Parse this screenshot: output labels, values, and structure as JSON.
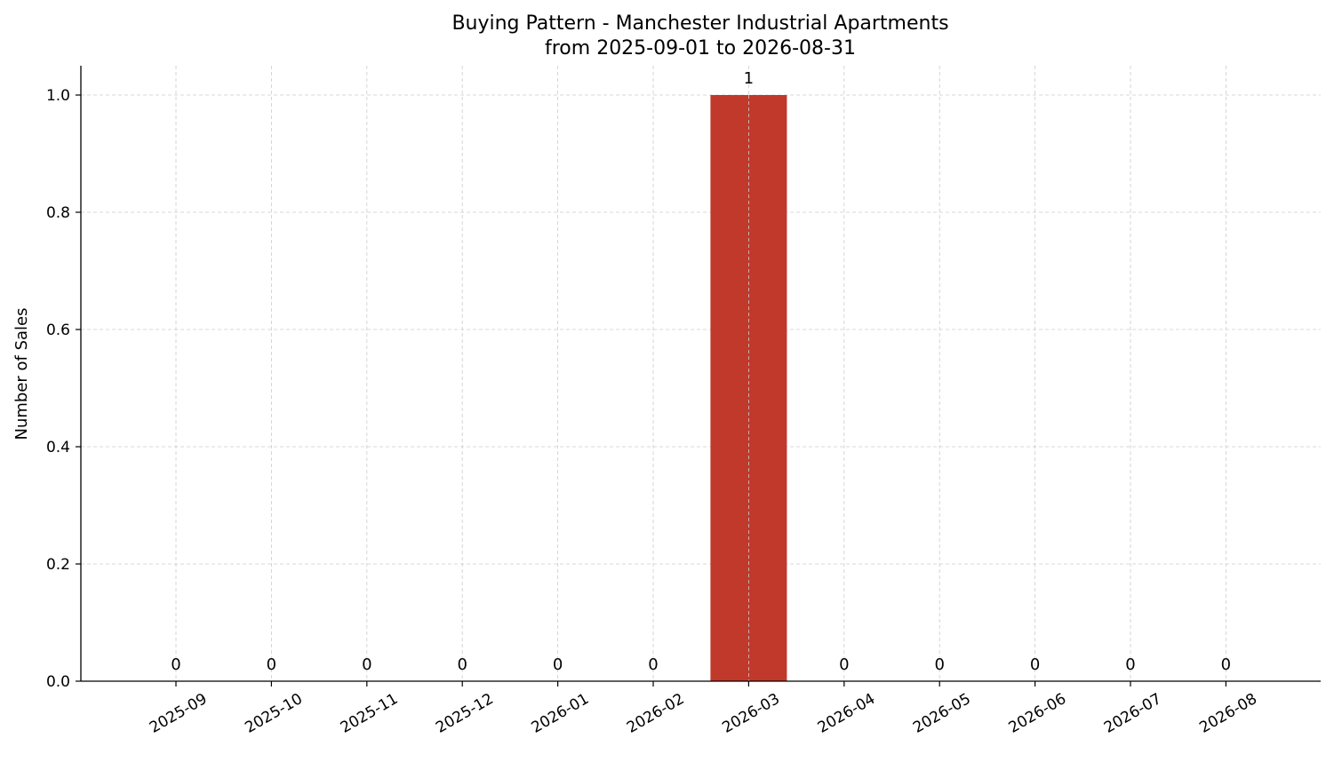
{
  "chart_data": {
    "type": "bar",
    "title": "Buying Pattern - Manchester Industrial Apartments",
    "subtitle": "from 2025-09-01 to 2026-08-31",
    "xlabel": "",
    "ylabel": "Number of Sales",
    "categories": [
      "2025-09",
      "2025-10",
      "2025-11",
      "2025-12",
      "2026-01",
      "2026-02",
      "2026-03",
      "2026-04",
      "2026-05",
      "2026-06",
      "2026-07",
      "2026-08"
    ],
    "values": [
      0,
      0,
      0,
      0,
      0,
      0,
      1,
      0,
      0,
      0,
      0,
      0
    ],
    "data_labels": [
      "0",
      "0",
      "0",
      "0",
      "0",
      "0",
      "1",
      "0",
      "0",
      "0",
      "0",
      "0"
    ],
    "ylim": [
      0,
      1.05
    ],
    "yticks": [
      0,
      0.2,
      0.4,
      0.6,
      0.8,
      1.0
    ],
    "ytick_labels": [
      "0.0",
      "0.2",
      "0.4",
      "0.6",
      "0.8",
      "1.0"
    ],
    "grid": true,
    "bar_color": "#c0392b"
  }
}
